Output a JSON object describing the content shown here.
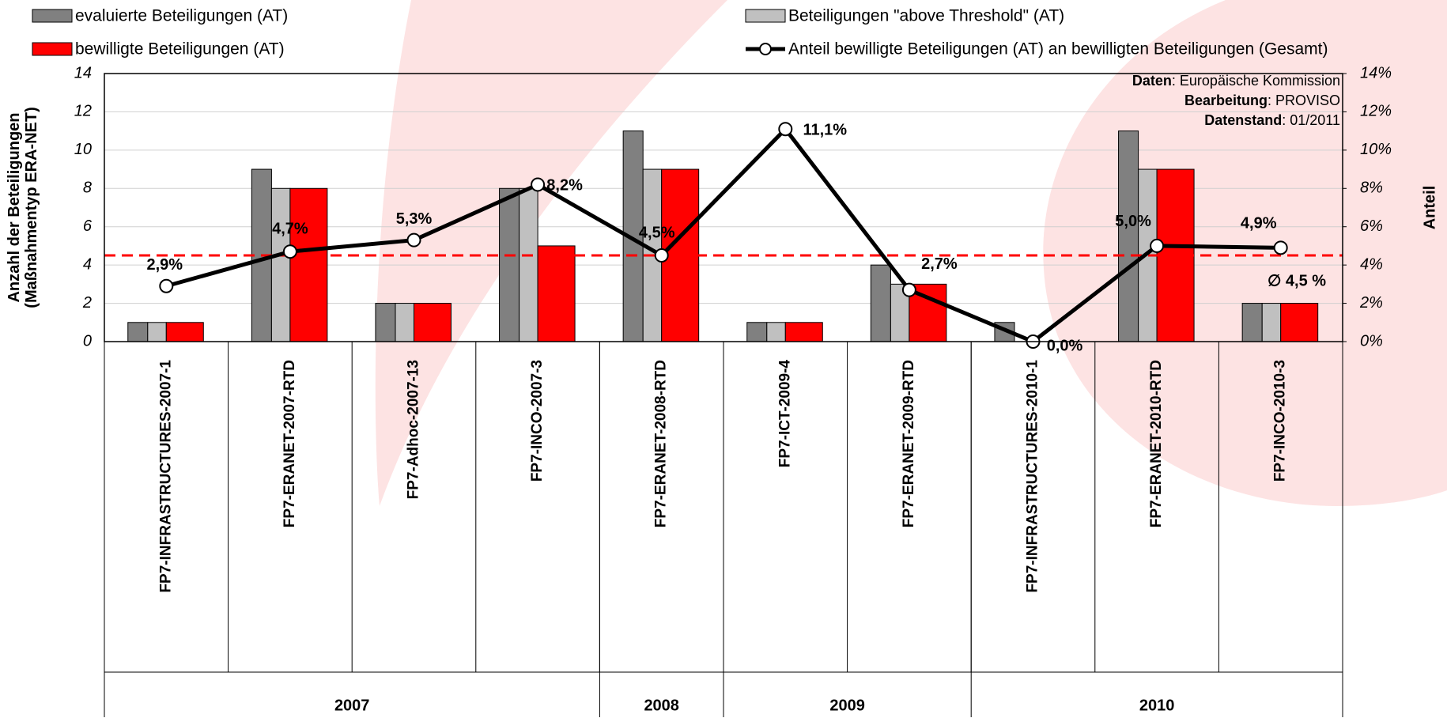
{
  "chart_data": {
    "type": "bar",
    "legend": "top",
    "y_label": [
      "Anzahl der Beteiligungen",
      "(Maßnahmentyp ERA-NET)"
    ],
    "y2_label": "Anteil",
    "categories": [
      "FP7-INFRASTRUCTURES-2007-1",
      "FP7-ERANET-2007-RTD",
      "FP7-Adhoc-2007-13",
      "FP7-INCO-2007-3",
      "FP7-ERANET-2008-RTD",
      "FP7-ICT-2009-4",
      "FP7-ERANET-2009-RTD",
      "FP7-INFRASTRUCTURES-2010-1",
      "FP7-ERANET-2010-RTD",
      "FP7-INCO-2010-3"
    ],
    "groups": [
      {
        "label": "2007",
        "count": 4
      },
      {
        "label": "2008",
        "count": 1
      },
      {
        "label": "2009",
        "count": 2
      },
      {
        "label": "2010",
        "count": 3
      }
    ],
    "series": [
      {
        "name": "evaluierte Beteiligungen (AT)",
        "type": "bar",
        "color": "#808080",
        "values": [
          1,
          9,
          2,
          8,
          11,
          1,
          4,
          1,
          11,
          2
        ]
      },
      {
        "name": "Beteiligungen \"above Threshold\"  (AT)",
        "type": "bar",
        "color": "#c0c0c0",
        "values": [
          1,
          8,
          2,
          8,
          9,
          1,
          3,
          0,
          9,
          2
        ]
      },
      {
        "name": "bewilligte Beteiligungen (AT)",
        "type": "bar",
        "color": "#ff0000",
        "values": [
          1,
          8,
          2,
          5,
          9,
          1,
          3,
          0,
          9,
          2
        ]
      },
      {
        "name": "Anteil bewilligte Beteiligungen (AT)  an bewilligten Beteiligungen (Gesamt)",
        "type": "line",
        "axis": "y2",
        "color": "#000000",
        "values": [
          2.9,
          4.7,
          5.3,
          8.2,
          4.5,
          11.1,
          2.7,
          0.0,
          5.0,
          4.9
        ],
        "value_labels": [
          "2,9%",
          "4,7%",
          "5,3%",
          "8,2%",
          "4,5%",
          "11,1%",
          "2,7%",
          "0,0%",
          "5,0%",
          "4,9%"
        ]
      }
    ],
    "average": {
      "value": 4.5,
      "label": "∅ 4,5 %",
      "color": "#ff0000"
    },
    "annotations": [
      {
        "bold": "Daten",
        "text": ": Europäische Kommission"
      },
      {
        "bold": "Bearbeitung",
        "text": ": PROVISO"
      },
      {
        "bold": "Datenstand",
        "text": ": 01/2011"
      }
    ],
    "ylim": [
      0,
      14
    ],
    "yticks": [
      0,
      2,
      4,
      6,
      8,
      10,
      12,
      14
    ],
    "y2lim": [
      0,
      14
    ],
    "y2ticks": [
      {
        "value": 0,
        "label": "0%"
      },
      {
        "value": 2,
        "label": "2%"
      },
      {
        "value": 4,
        "label": "4%"
      },
      {
        "value": 6,
        "label": "6%"
      },
      {
        "value": 8,
        "label": "8%"
      },
      {
        "value": 10,
        "label": "10%"
      },
      {
        "value": 12,
        "label": "12%"
      },
      {
        "value": 14,
        "label": "14%"
      }
    ],
    "grid": true
  }
}
